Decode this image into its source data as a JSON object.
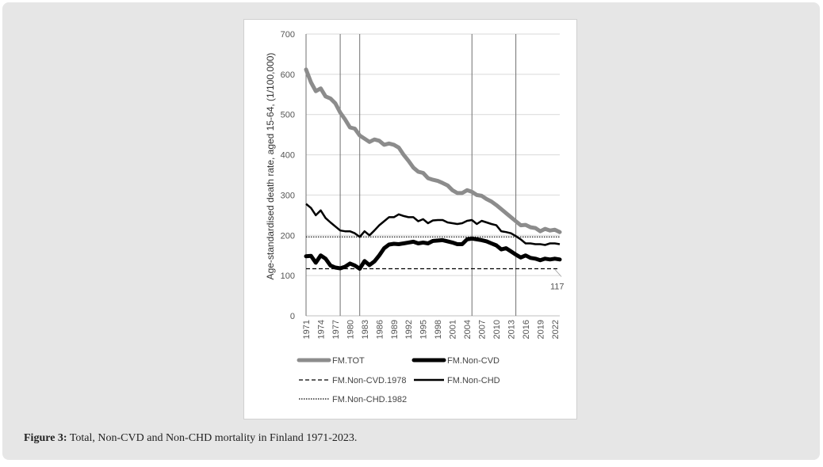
{
  "caption": {
    "label": "Figure 3:",
    "text": " Total, Non-CVD and Non-CHD mortality in Finland 1971-2023."
  },
  "chart_data": {
    "type": "line",
    "title": "",
    "xlabel": "",
    "ylabel": "Age-standardised death rate, aged 15-64, (1/100,000)",
    "ylim": [
      0,
      700
    ],
    "yticks": [
      0,
      100,
      200,
      300,
      400,
      500,
      600,
      700
    ],
    "xlim": [
      1971,
      2023
    ],
    "xtick_labels": [
      "1971",
      "1974",
      "1977",
      "1980",
      "1983",
      "1986",
      "1989",
      "1992",
      "1995",
      "1998",
      "2001",
      "2004",
      "2007",
      "2010",
      "2013",
      "2016",
      "2019",
      "2022"
    ],
    "grid": true,
    "legend_position": "bottom",
    "vertical_reference_years": [
      1971,
      1978,
      1982,
      2005,
      2014
    ],
    "annotations": [
      {
        "text": "117",
        "x": 2023,
        "y": 117
      }
    ],
    "x": [
      1971,
      1972,
      1973,
      1974,
      1975,
      1976,
      1977,
      1978,
      1979,
      1980,
      1981,
      1982,
      1983,
      1984,
      1985,
      1986,
      1987,
      1988,
      1989,
      1990,
      1991,
      1992,
      1993,
      1994,
      1995,
      1996,
      1997,
      1998,
      1999,
      2000,
      2001,
      2002,
      2003,
      2004,
      2005,
      2006,
      2007,
      2008,
      2009,
      2010,
      2011,
      2012,
      2013,
      2014,
      2015,
      2016,
      2017,
      2018,
      2019,
      2020,
      2021,
      2022,
      2023
    ],
    "series": [
      {
        "name": "FM.TOT",
        "style": "thick-gray",
        "color": "#8c8c8c",
        "values": [
          612,
          580,
          558,
          565,
          545,
          540,
          528,
          505,
          488,
          468,
          465,
          448,
          440,
          432,
          438,
          435,
          425,
          428,
          425,
          418,
          400,
          385,
          368,
          358,
          355,
          342,
          338,
          335,
          330,
          324,
          312,
          305,
          305,
          312,
          308,
          300,
          298,
          290,
          284,
          275,
          265,
          255,
          245,
          235,
          225,
          226,
          220,
          218,
          210,
          216,
          212,
          214,
          208
        ]
      },
      {
        "name": "FM.Non-CVD",
        "style": "thick-black",
        "color": "#000000",
        "values": [
          148,
          149,
          132,
          150,
          142,
          125,
          120,
          118,
          122,
          130,
          125,
          117,
          136,
          126,
          135,
          150,
          168,
          177,
          179,
          178,
          180,
          182,
          184,
          180,
          182,
          180,
          186,
          187,
          188,
          185,
          182,
          178,
          178,
          190,
          192,
          190,
          188,
          185,
          180,
          175,
          165,
          168,
          160,
          152,
          145,
          150,
          144,
          142,
          138,
          142,
          140,
          142,
          140
        ]
      },
      {
        "name": "FM.Non-CVD.1978",
        "style": "dashed",
        "color": "#000000",
        "values": [
          117,
          117,
          117,
          117,
          117,
          117,
          117,
          117,
          117,
          117,
          117,
          117,
          117,
          117,
          117,
          117,
          117,
          117,
          117,
          117,
          117,
          117,
          117,
          117,
          117,
          117,
          117,
          117,
          117,
          117,
          117,
          117,
          117,
          117,
          117,
          117,
          117,
          117,
          117,
          117,
          117,
          117,
          117,
          117,
          117,
          117,
          117,
          117,
          117,
          117,
          117,
          117,
          117
        ]
      },
      {
        "name": "FM.Non-CHD",
        "style": "solid",
        "color": "#000000",
        "values": [
          278,
          268,
          250,
          262,
          243,
          232,
          222,
          212,
          210,
          210,
          205,
          196,
          210,
          200,
          212,
          225,
          235,
          245,
          245,
          252,
          248,
          245,
          245,
          235,
          240,
          230,
          237,
          238,
          238,
          232,
          230,
          228,
          230,
          236,
          238,
          228,
          236,
          232,
          228,
          225,
          210,
          208,
          205,
          198,
          190,
          180,
          180,
          178,
          178,
          176,
          180,
          180,
          178
        ]
      },
      {
        "name": "FM.Non-CHD.1982",
        "style": "dotted",
        "color": "#000000",
        "values": [
          196,
          196,
          196,
          196,
          196,
          196,
          196,
          196,
          196,
          196,
          196,
          196,
          196,
          196,
          196,
          196,
          196,
          196,
          196,
          196,
          196,
          196,
          196,
          196,
          196,
          196,
          196,
          196,
          196,
          196,
          196,
          196,
          196,
          196,
          196,
          196,
          196,
          196,
          196,
          196,
          196,
          196,
          196,
          196,
          196,
          196,
          196,
          196,
          196,
          196,
          196,
          196,
          196
        ]
      }
    ]
  }
}
